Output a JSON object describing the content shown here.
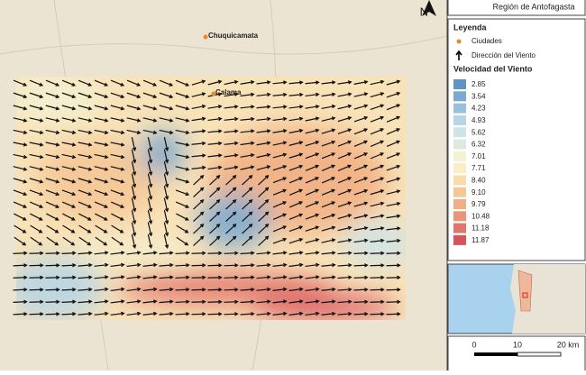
{
  "header": {
    "title": "Región de Antofagasta"
  },
  "north_arrow": {
    "label": "N"
  },
  "map": {
    "cities": [
      {
        "label": "Chuquicamata"
      },
      {
        "label": "Calama"
      }
    ]
  },
  "legend": {
    "title": "Leyenda",
    "symbols": [
      {
        "label": "Ciudades"
      },
      {
        "label": "Dirección del Viento"
      }
    ],
    "ramp_title": "Velocidad del Viento",
    "classes": [
      {
        "label": "2.85",
        "color": "#5f93c4"
      },
      {
        "label": "3.54",
        "color": "#7aa8d0"
      },
      {
        "label": "4.23",
        "color": "#9ac0dc"
      },
      {
        "label": "4.93",
        "color": "#b8d5e6"
      },
      {
        "label": "5.62",
        "color": "#cfe4e9"
      },
      {
        "label": "6.32",
        "color": "#dfeadf"
      },
      {
        "label": "7.01",
        "color": "#f3f2d2"
      },
      {
        "label": "7.71",
        "color": "#fbeec4"
      },
      {
        "label": "8.40",
        "color": "#f9dcaa"
      },
      {
        "label": "9.10",
        "color": "#f5c795"
      },
      {
        "label": "9.79",
        "color": "#f1b083"
      },
      {
        "label": "10.48",
        "color": "#ea9478"
      },
      {
        "label": "11.18",
        "color": "#e2756c"
      },
      {
        "label": "11.87",
        "color": "#d9535f"
      }
    ]
  },
  "scale_bar": {
    "labels": [
      "0",
      "10",
      "20 km"
    ]
  }
}
